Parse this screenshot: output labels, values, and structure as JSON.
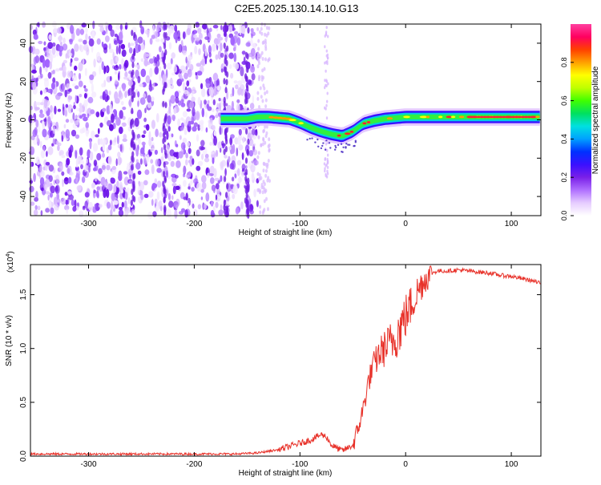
{
  "title": "C2E5.2025.130.14.10.G13",
  "chart_data": [
    {
      "type": "heatmap",
      "xlabel": "Height of straight line (km)",
      "ylabel": "Frequency (Hz)",
      "xlim": [
        -355,
        128
      ],
      "ylim": [
        -50,
        50
      ],
      "xticks": [
        -300,
        -200,
        -100,
        0,
        100
      ],
      "yticks": [
        -40,
        -20,
        0,
        20,
        40
      ],
      "colorbar": {
        "label": "Normalized spectral amplitude",
        "range": [
          0,
          1
        ],
        "ticks": [
          "0.0",
          "0.2",
          "0.4",
          "0.6",
          "0.8"
        ],
        "tick_values": [
          0,
          0.2,
          0.4,
          0.6,
          0.8
        ],
        "colors": [
          "#ffffff",
          "#e6ccff",
          "#b070ff",
          "#7a20e8",
          "#3a10ff",
          "#0030ff",
          "#00a0ff",
          "#00e0e0",
          "#00e060",
          "#40ff00",
          "#c0ff00",
          "#ffff00",
          "#ffa000",
          "#ff4000",
          "#ff0060",
          "#ff40a0"
        ]
      },
      "noise_region": {
        "x_start": -355,
        "x_end": -140,
        "freq_range": [
          -50,
          50
        ]
      },
      "signal_track": {
        "x": [
          -175,
          -165,
          -150,
          -140,
          -130,
          -120,
          -110,
          -100,
          -90,
          -80,
          -70,
          -60,
          -50,
          -40,
          -30,
          -20,
          -10,
          0,
          20,
          40,
          60,
          80,
          100,
          128
        ],
        "freq": [
          0.5,
          0.5,
          0.5,
          1.5,
          1.5,
          1.0,
          0.5,
          -1.5,
          -4.0,
          -6.0,
          -7.5,
          -8.5,
          -6.0,
          -2.0,
          -0.5,
          0.5,
          1.0,
          1.5,
          1.5,
          1.5,
          1.5,
          1.5,
          1.5,
          1.5
        ]
      },
      "artifact": {
        "x": -75,
        "freq_range": [
          -30,
          50
        ]
      }
    },
    {
      "type": "line",
      "xlabel": "Height of straight line (km)",
      "ylabel": "SNR (10 * v/v)",
      "scale_label": "(x10",
      "scale_exp": "4",
      "scale_close": ")",
      "xlim": [
        -355,
        128
      ],
      "ylim": [
        0,
        1.78
      ],
      "xticks": [
        -300,
        -200,
        -100,
        0,
        100
      ],
      "yticks": [
        "0.0",
        "0.5",
        "1.0",
        "1.5"
      ],
      "ytick_values": [
        0,
        0.5,
        1.0,
        1.5
      ],
      "series": [
        {
          "color": "#e8322a",
          "x": [
            -355,
            -300,
            -250,
            -200,
            -160,
            -140,
            -120,
            -100,
            -90,
            -80,
            -75,
            -70,
            -60,
            -50,
            -45,
            -40,
            -35,
            -30,
            -25,
            -20,
            -15,
            -10,
            -5,
            0,
            5,
            10,
            15,
            20,
            25,
            30,
            40,
            50,
            60,
            70,
            80,
            90,
            100,
            110,
            120,
            128
          ],
          "y": [
            0.02,
            0.02,
            0.02,
            0.02,
            0.02,
            0.03,
            0.06,
            0.12,
            0.15,
            0.2,
            0.18,
            0.1,
            0.05,
            0.1,
            0.25,
            0.45,
            0.7,
            0.85,
            0.95,
            1.0,
            1.05,
            1.1,
            1.2,
            1.3,
            1.4,
            1.5,
            1.6,
            1.66,
            1.7,
            1.72,
            1.72,
            1.73,
            1.72,
            1.71,
            1.7,
            1.68,
            1.67,
            1.65,
            1.63,
            1.6
          ]
        }
      ]
    }
  ]
}
